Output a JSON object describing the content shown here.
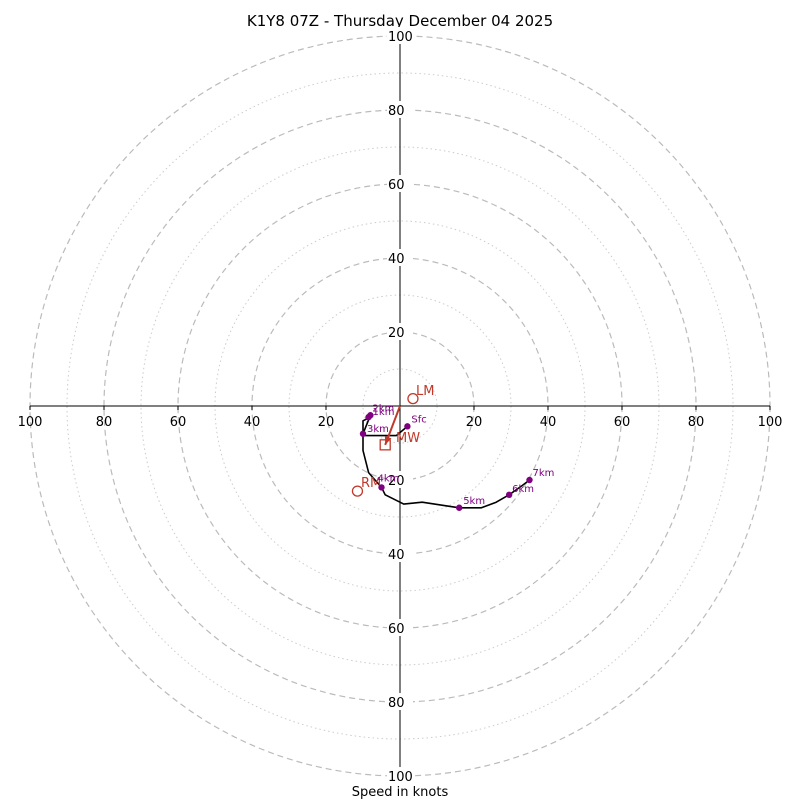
{
  "chart_data": {
    "type": "scatter",
    "subtype": "hodograph",
    "title": "K1Y8 07Z - Thursday December 04 2025",
    "xlabel": "Speed in knots",
    "ylim": [
      -100,
      100
    ],
    "xlim": [
      -100,
      100
    ],
    "ring_speeds": [
      20,
      40,
      60,
      80,
      100
    ],
    "minor_ring_speeds": [
      10,
      30,
      50,
      70,
      90
    ],
    "tick_labels": [
      "20",
      "40",
      "60",
      "80",
      "100"
    ],
    "trace": [
      {
        "u": 2,
        "v": -5.5
      },
      {
        "u": -1,
        "v": -8
      },
      {
        "u": -10,
        "v": -8
      },
      {
        "u": -10,
        "v": -4
      },
      {
        "u": -9,
        "v": -3.5
      },
      {
        "u": -8.5,
        "v": -3
      },
      {
        "u": -8,
        "v": -2.5
      },
      {
        "u": -10,
        "v": -7.5
      },
      {
        "u": -10,
        "v": -12
      },
      {
        "u": -8.5,
        "v": -18
      },
      {
        "u": -5,
        "v": -22
      },
      {
        "u": -4,
        "v": -24
      },
      {
        "u": 0,
        "v": -26
      },
      {
        "u": 1,
        "v": -26.5
      },
      {
        "u": 6,
        "v": -26
      },
      {
        "u": 16,
        "v": -27.5
      },
      {
        "u": 22,
        "v": -27.5
      },
      {
        "u": 26,
        "v": -26
      },
      {
        "u": 29.5,
        "v": -24
      },
      {
        "u": 33,
        "v": -21.5
      },
      {
        "u": 35,
        "v": -20
      }
    ],
    "points": [
      {
        "label": "Sfc",
        "u": 2,
        "v": -5.5
      },
      {
        "label": "3km",
        "u": -10,
        "v": -7.5
      },
      {
        "label": "1km",
        "u": -8.5,
        "v": -3
      },
      {
        "label": "2km",
        "u": -8,
        "v": -2.5
      },
      {
        "label": "4km",
        "u": -5,
        "v": -22
      },
      {
        "label": "5km",
        "u": 16,
        "v": -27.5
      },
      {
        "label": "6km",
        "u": 29.5,
        "v": -24
      },
      {
        "label": "7km",
        "u": 35,
        "v": -20
      }
    ],
    "markers": {
      "lm": {
        "label": "LM",
        "u": 3.5,
        "v": 2
      },
      "rm": {
        "label": "RM",
        "u": -11.5,
        "v": -23
      },
      "mw": {
        "label": "MW",
        "u": -4,
        "v": -10.5
      },
      "shear_vector": {
        "from_u": 0,
        "from_v": 0,
        "to_u": -4,
        "to_v": -10.5
      }
    },
    "colors": {
      "trace": "#000000",
      "points": "#800080",
      "markers": "#c0392b",
      "rings": "#bbbbbb"
    }
  }
}
